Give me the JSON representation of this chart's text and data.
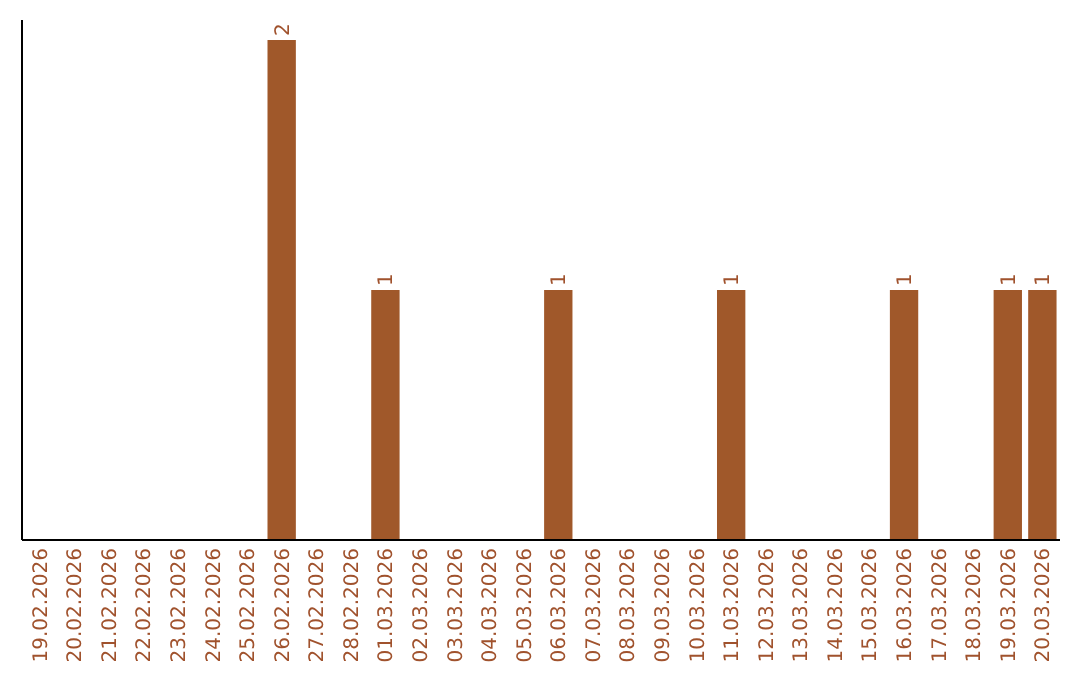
{
  "chart_data": {
    "type": "bar",
    "categories": [
      "19.02.2026",
      "20.02.2026",
      "21.02.2026",
      "22.02.2026",
      "23.02.2026",
      "24.02.2026",
      "25.02.2026",
      "26.02.2026",
      "27.02.2026",
      "28.02.2026",
      "01.03.2026",
      "02.03.2026",
      "03.03.2026",
      "04.03.2026",
      "05.03.2026",
      "06.03.2026",
      "07.03.2026",
      "08.03.2026",
      "09.03.2026",
      "10.03.2026",
      "11.03.2026",
      "12.03.2026",
      "13.03.2026",
      "14.03.2026",
      "15.03.2026",
      "16.03.2026",
      "17.03.2026",
      "18.03.2026",
      "19.03.2026",
      "20.03.2026"
    ],
    "values": [
      0,
      0,
      0,
      0,
      0,
      0,
      0,
      2,
      0,
      0,
      1,
      0,
      0,
      0,
      0,
      1,
      0,
      0,
      0,
      0,
      1,
      0,
      0,
      0,
      0,
      1,
      0,
      0,
      1,
      1
    ],
    "value_labels": [
      null,
      null,
      null,
      null,
      null,
      null,
      null,
      "2",
      null,
      null,
      "1",
      null,
      null,
      null,
      null,
      "1",
      null,
      null,
      null,
      null,
      "1",
      null,
      null,
      null,
      null,
      "1",
      null,
      null,
      "1",
      "1"
    ],
    "color": "#a0582a",
    "ylim": [
      0,
      2.08
    ],
    "tick_labels": "x"
  }
}
